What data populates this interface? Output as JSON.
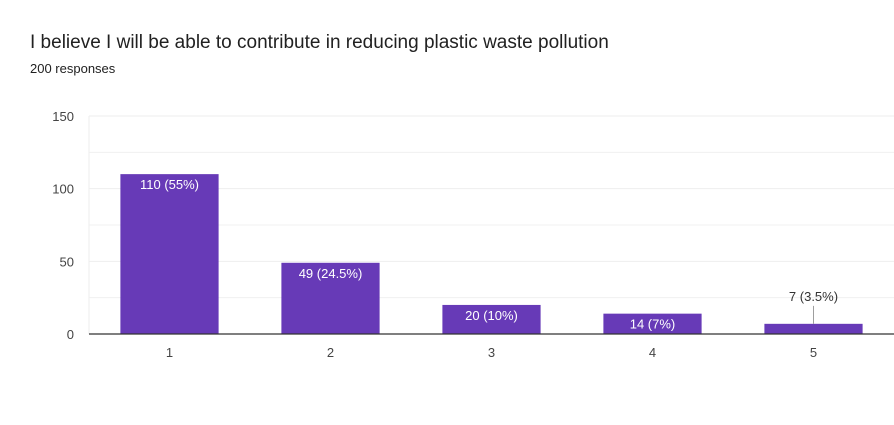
{
  "question": {
    "title": "I believe I will be able to contribute in reducing plastic waste pollution",
    "responses": "200 responses"
  },
  "chart_data": {
    "type": "bar",
    "categories": [
      "1",
      "2",
      "3",
      "4",
      "5"
    ],
    "values": [
      110,
      49,
      20,
      14,
      7
    ],
    "data_labels": [
      "110 (55%)",
      "49 (24.5%)",
      "20 (10%)",
      "14 (7%)",
      "7 (3.5%)"
    ],
    "ylim": [
      0,
      150
    ],
    "yticks": [
      "0",
      "50",
      "100",
      "150"
    ],
    "ytick_values": [
      0,
      50,
      100,
      150
    ],
    "grid": true,
    "legend": "none",
    "bar_color": "#673ab7",
    "grid_color": "#eeeeee",
    "axis_color": "#333333"
  }
}
